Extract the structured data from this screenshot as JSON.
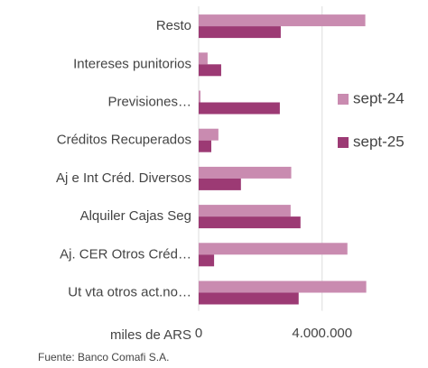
{
  "chart_data": {
    "type": "hbar",
    "categories": [
      "Resto",
      "Intereses punitorios",
      "Previsiones…",
      "Créditos Recuperados",
      "Aj e Int Créd. Diversos",
      "Alquiler Cajas Seg",
      "Aj. CER Otros Créd…",
      "Ut vta otros act.no…"
    ],
    "series": [
      {
        "name": "sept-24",
        "color": "#c98bb0",
        "values": [
          5400000,
          290000,
          60000,
          640000,
          3000000,
          2980000,
          4820000,
          5430000
        ]
      },
      {
        "name": "sept-25",
        "color": "#9c3a74",
        "values": [
          2660000,
          730000,
          2630000,
          410000,
          1370000,
          3300000,
          500000,
          3240000
        ]
      }
    ],
    "xlabel": "miles de ARS",
    "source": "Fuente: Banco Comafi S.A.",
    "xlim": [
      0,
      5500000
    ],
    "xticks": [
      0,
      {
        "value": 4000000,
        "label": "4.000.000"
      }
    ],
    "grid": true,
    "legend": "right"
  }
}
